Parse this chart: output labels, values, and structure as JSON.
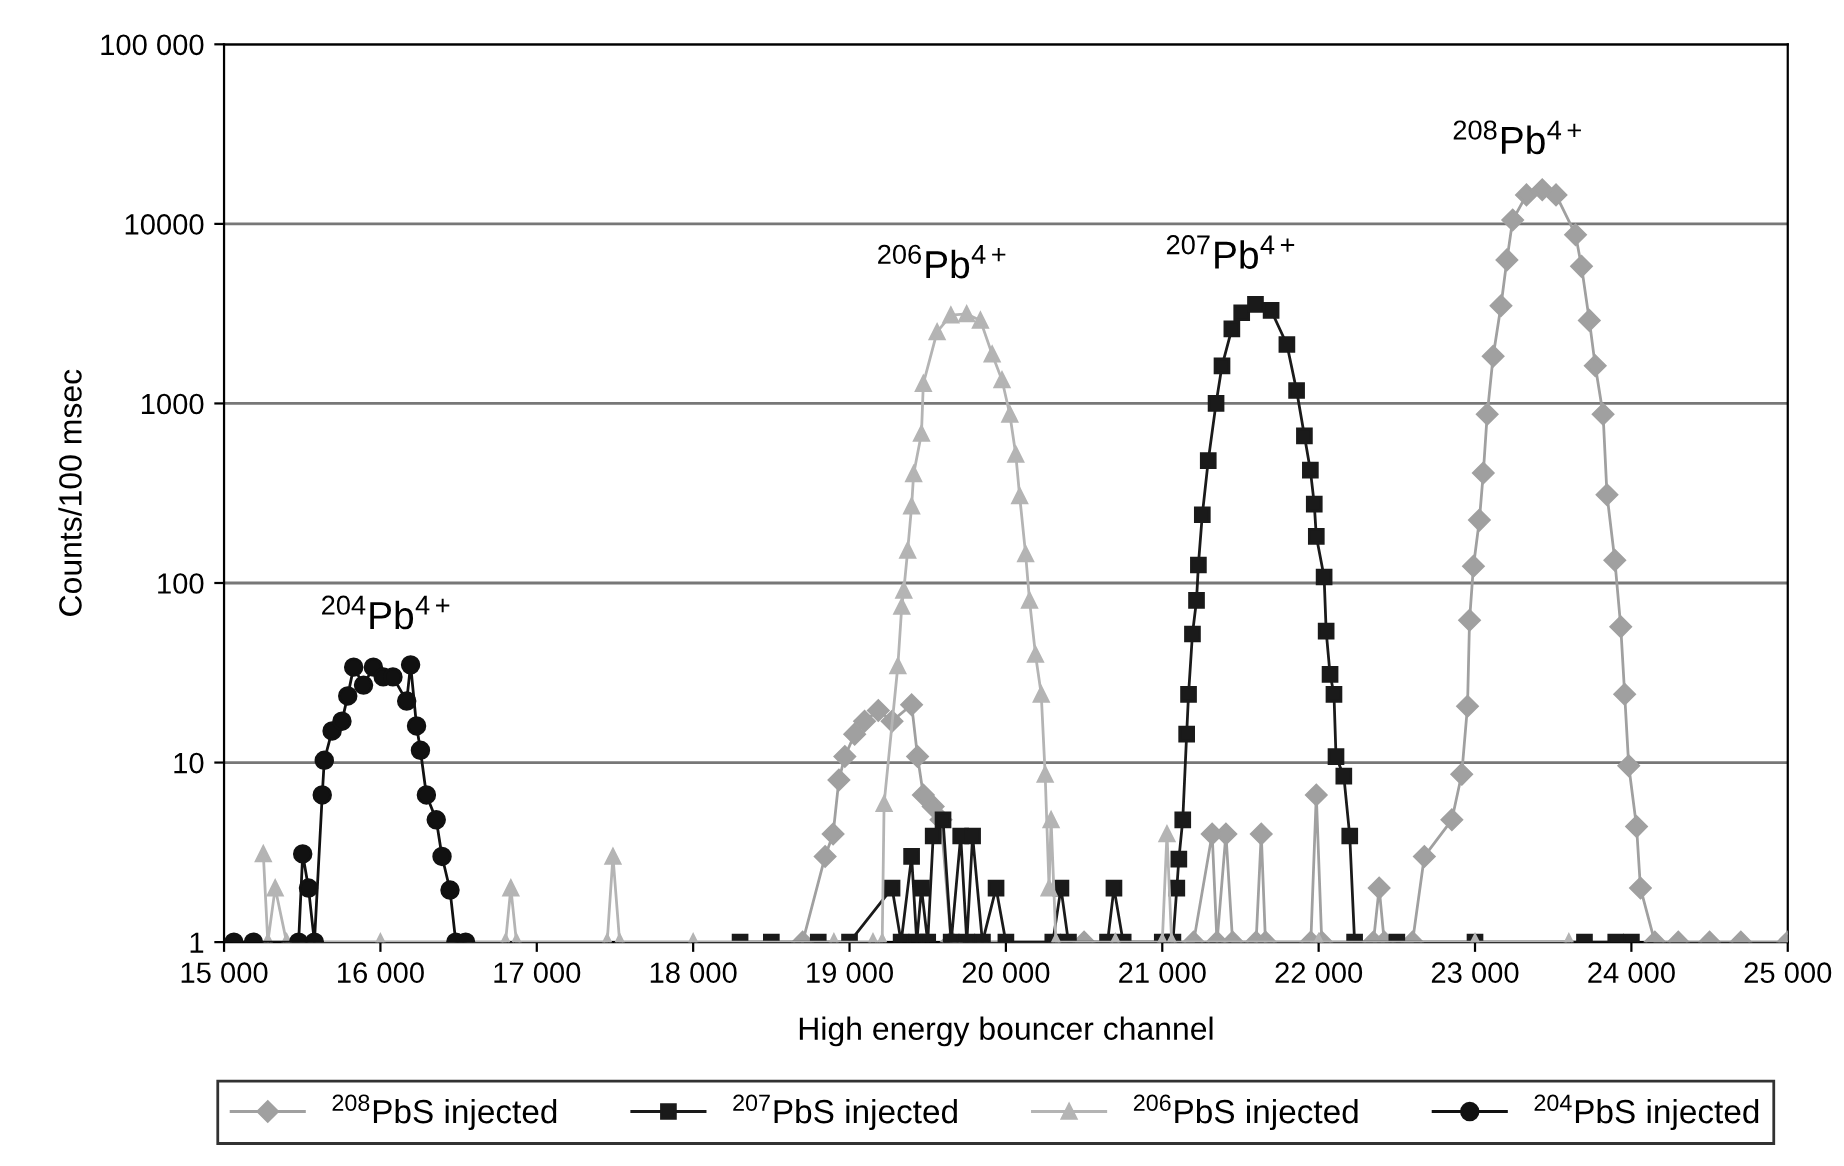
{
  "chart_data": {
    "type": "line",
    "xlabel": "High energy bouncer channel",
    "ylabel": "Counts/100 msec",
    "log": "y",
    "grid": "y",
    "legend": "bottom",
    "line_style": "solid",
    "xlim": [
      15000,
      25000
    ],
    "ylim": [
      1,
      100000
    ],
    "xticks": [
      {
        "value": 15000,
        "label": "15 000"
      },
      {
        "value": 16000,
        "label": "16 000"
      },
      {
        "value": 17000,
        "label": "17 000"
      },
      {
        "value": 18000,
        "label": "18 000"
      },
      {
        "value": 19000,
        "label": "19 000"
      },
      {
        "value": 20000,
        "label": "20 000"
      },
      {
        "value": 21000,
        "label": "21 000"
      },
      {
        "value": 22000,
        "label": "22 000"
      },
      {
        "value": 23000,
        "label": "23 000"
      },
      {
        "value": 24000,
        "label": "24 000"
      },
      {
        "value": 25000,
        "label": "25 000"
      }
    ],
    "yticks": [
      1,
      10,
      100,
      1000,
      10000,
      {
        "value": 100000,
        "label": "100 000"
      }
    ],
    "annotations": [
      {
        "text": "$^{204}$Pb$^{4+}$",
        "x": 16193,
        "y": 35
      },
      {
        "text": "$^{206}$Pb$^{4+}$",
        "x": 19749,
        "y": 3150
      },
      {
        "text": "$^{207}$Pb$^{4+}$",
        "x": 21596,
        "y": 3560
      },
      {
        "text": "$^{208}$Pb$^{4+}$",
        "x": 23430,
        "y": 15500
      }
    ],
    "series": [
      {
        "name": "$^{208}$PbS injected",
        "color": "#a0a0a0",
        "marker": "diamond",
        "x": [
          18700,
          18844,
          18895,
          18932,
          18970,
          19033,
          19096,
          19184,
          19272,
          19397,
          19435,
          19472,
          19535,
          19585,
          19650,
          20500,
          21200,
          21319,
          21350,
          21407,
          21450,
          21600,
          21633,
          21660,
          21950,
          21985,
          22020,
          22350,
          22387,
          22420,
          22600,
          22676,
          22852,
          22915,
          22952,
          22965,
          22990,
          23028,
          23053,
          23078,
          23116,
          23166,
          23204,
          23241,
          23329,
          23430,
          23518,
          23643,
          23681,
          23731,
          23769,
          23819,
          23844,
          23894,
          23932,
          23957,
          23983,
          24033,
          24058,
          24150,
          24300,
          24500,
          24700,
          25000
        ],
        "values": [
          1,
          3,
          4,
          8,
          10.8,
          14.4,
          17,
          19.5,
          17,
          21,
          10.8,
          6.6,
          5.7,
          4.8,
          1,
          1,
          1,
          4,
          1,
          4,
          1,
          1,
          4,
          1,
          1,
          6.6,
          1,
          1,
          2,
          1,
          1,
          3,
          4.8,
          8.6,
          20.6,
          62,
          124,
          224,
          410,
          870,
          1830,
          3500,
          6300,
          10500,
          14500,
          15500,
          14500,
          8700,
          5800,
          2900,
          1620,
          870,
          310,
          134,
          57,
          24,
          9.6,
          4.4,
          2,
          1,
          1,
          1,
          1,
          1
        ]
      },
      {
        "name": "$^{207}$PbS injected",
        "color": "#1a1a1a",
        "marker": "square",
        "x": [
          18300,
          18500,
          18800,
          19000,
          19272,
          19330,
          19397,
          19430,
          19460,
          19500,
          19535,
          19598,
          19650,
          19711,
          19750,
          19787,
          19850,
          19937,
          20000,
          20300,
          20352,
          20400,
          20650,
          20691,
          20750,
          21000,
          21068,
          21093,
          21106,
          21131,
          21156,
          21168,
          21193,
          21219,
          21231,
          21256,
          21294,
          21344,
          21382,
          21445,
          21508,
          21596,
          21696,
          21797,
          21859,
          21909,
          21947,
          21972,
          21985,
          22035,
          22048,
          22073,
          22098,
          22111,
          22161,
          22199,
          22230,
          22500,
          23000,
          23700,
          23900,
          24000
        ],
        "values": [
          1,
          1,
          1,
          1,
          2,
          1,
          3,
          1,
          2,
          1,
          3.9,
          4.8,
          1,
          3.9,
          1,
          3.9,
          1,
          2,
          1,
          1,
          2,
          1,
          1,
          2,
          1,
          1,
          1,
          2,
          2.9,
          4.8,
          14.4,
          24,
          52,
          80,
          126,
          240,
          480,
          1000,
          1620,
          2600,
          3200,
          3560,
          3300,
          2130,
          1180,
          660,
          425,
          275,
          182,
          108,
          54,
          31,
          24,
          10.8,
          8.4,
          3.9,
          1,
          1,
          1,
          1,
          1,
          1
        ]
      },
      {
        "name": "$^{206}$PbS injected",
        "color": "#b4b4b4",
        "marker": "triangle",
        "x": [
          15251,
          15280,
          15327,
          15400,
          16000,
          16800,
          16834,
          16870,
          17450,
          17487,
          17530,
          18000,
          18900,
          19150,
          19209,
          19221,
          19309,
          19334,
          19347,
          19372,
          19397,
          19410,
          19460,
          19472,
          19560,
          19648,
          19749,
          19837,
          19912,
          19975,
          20025,
          20063,
          20088,
          20126,
          20151,
          20189,
          20226,
          20251,
          20276,
          20289,
          20320,
          20700,
          21000,
          21030,
          21060,
          22000,
          23000,
          23600
        ],
        "values": [
          3.1,
          1,
          2,
          1,
          1,
          1,
          2,
          1,
          1,
          3,
          1,
          1,
          1,
          1,
          1,
          5.9,
          34.5,
          74,
          91,
          152,
          268,
          405,
          680,
          1290,
          2500,
          3100,
          3150,
          2900,
          1880,
          1350,
          870,
          520,
          305,
          145,
          80,
          40,
          24,
          8.6,
          2,
          4.8,
          1,
          1,
          1,
          4,
          1,
          1,
          1,
          1
        ]
      },
      {
        "name": "$^{204}$PbS injected",
        "color": "#111111",
        "marker": "circle",
        "x": [
          15063,
          15188,
          15477,
          15503,
          15540,
          15578,
          15628,
          15641,
          15691,
          15754,
          15791,
          15829,
          15892,
          15955,
          16018,
          16080,
          16168,
          16193,
          16231,
          16256,
          16294,
          16357,
          16394,
          16445,
          16482,
          16545
        ],
        "values": [
          1,
          1,
          1,
          3.1,
          2,
          1,
          6.6,
          10.3,
          15,
          17,
          23.5,
          34,
          27,
          34,
          30,
          30,
          22,
          35,
          16,
          11.7,
          6.6,
          4.8,
          3,
          1.95,
          1,
          1
        ]
      }
    ]
  }
}
